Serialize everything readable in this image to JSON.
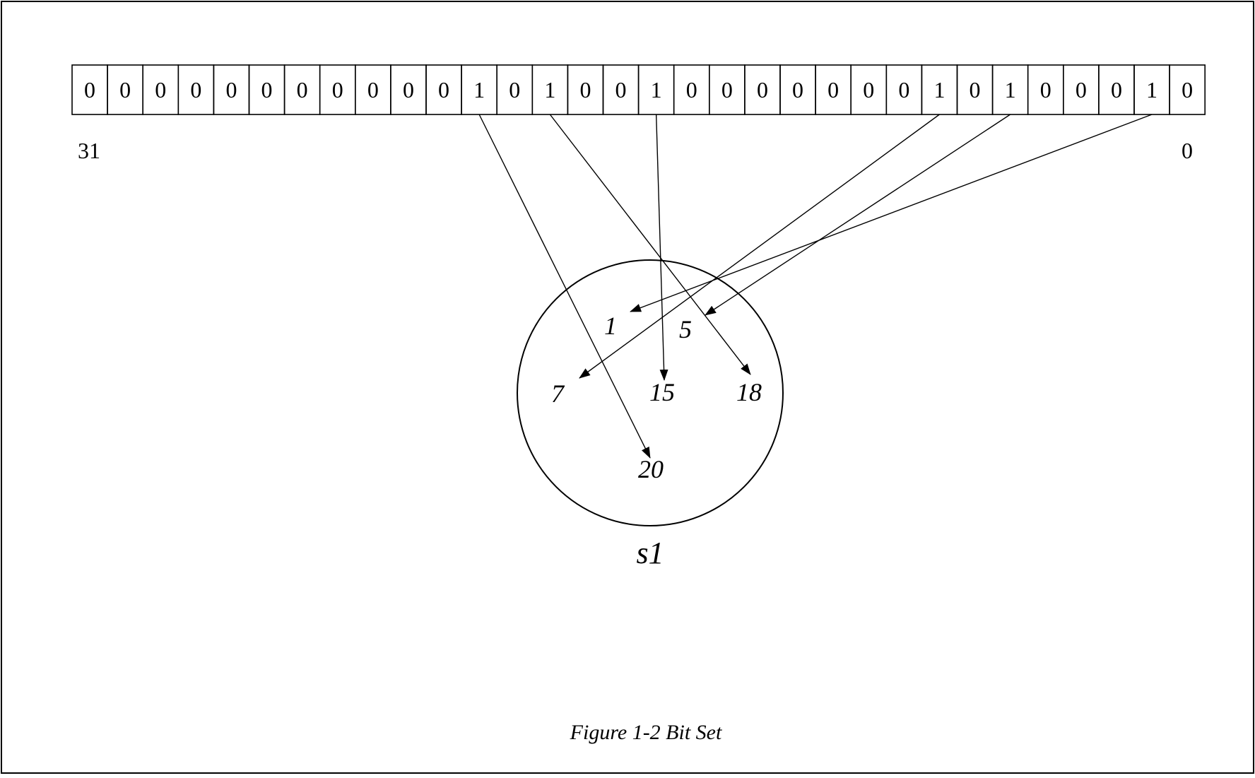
{
  "bit_set": {
    "bits": [
      "0",
      "0",
      "0",
      "0",
      "0",
      "0",
      "0",
      "0",
      "0",
      "0",
      "0",
      "1",
      "0",
      "1",
      "0",
      "0",
      "1",
      "0",
      "0",
      "0",
      "0",
      "0",
      "0",
      "0",
      "1",
      "0",
      "1",
      "0",
      "0",
      "0",
      "1",
      "0"
    ],
    "high_index_label": "31",
    "low_index_label": "0"
  },
  "set": {
    "name": "s1",
    "elements": [
      "1",
      "5",
      "7",
      "15",
      "18",
      "20"
    ]
  },
  "mappings": [
    {
      "bit_position": 20,
      "element": "20"
    },
    {
      "bit_position": 18,
      "element": "18"
    },
    {
      "bit_position": 15,
      "element": "15"
    },
    {
      "bit_position": 7,
      "element": "7"
    },
    {
      "bit_position": 5,
      "element": "5"
    },
    {
      "bit_position": 1,
      "element": "1"
    }
  ],
  "caption": "Figure 1-2 Bit Set"
}
